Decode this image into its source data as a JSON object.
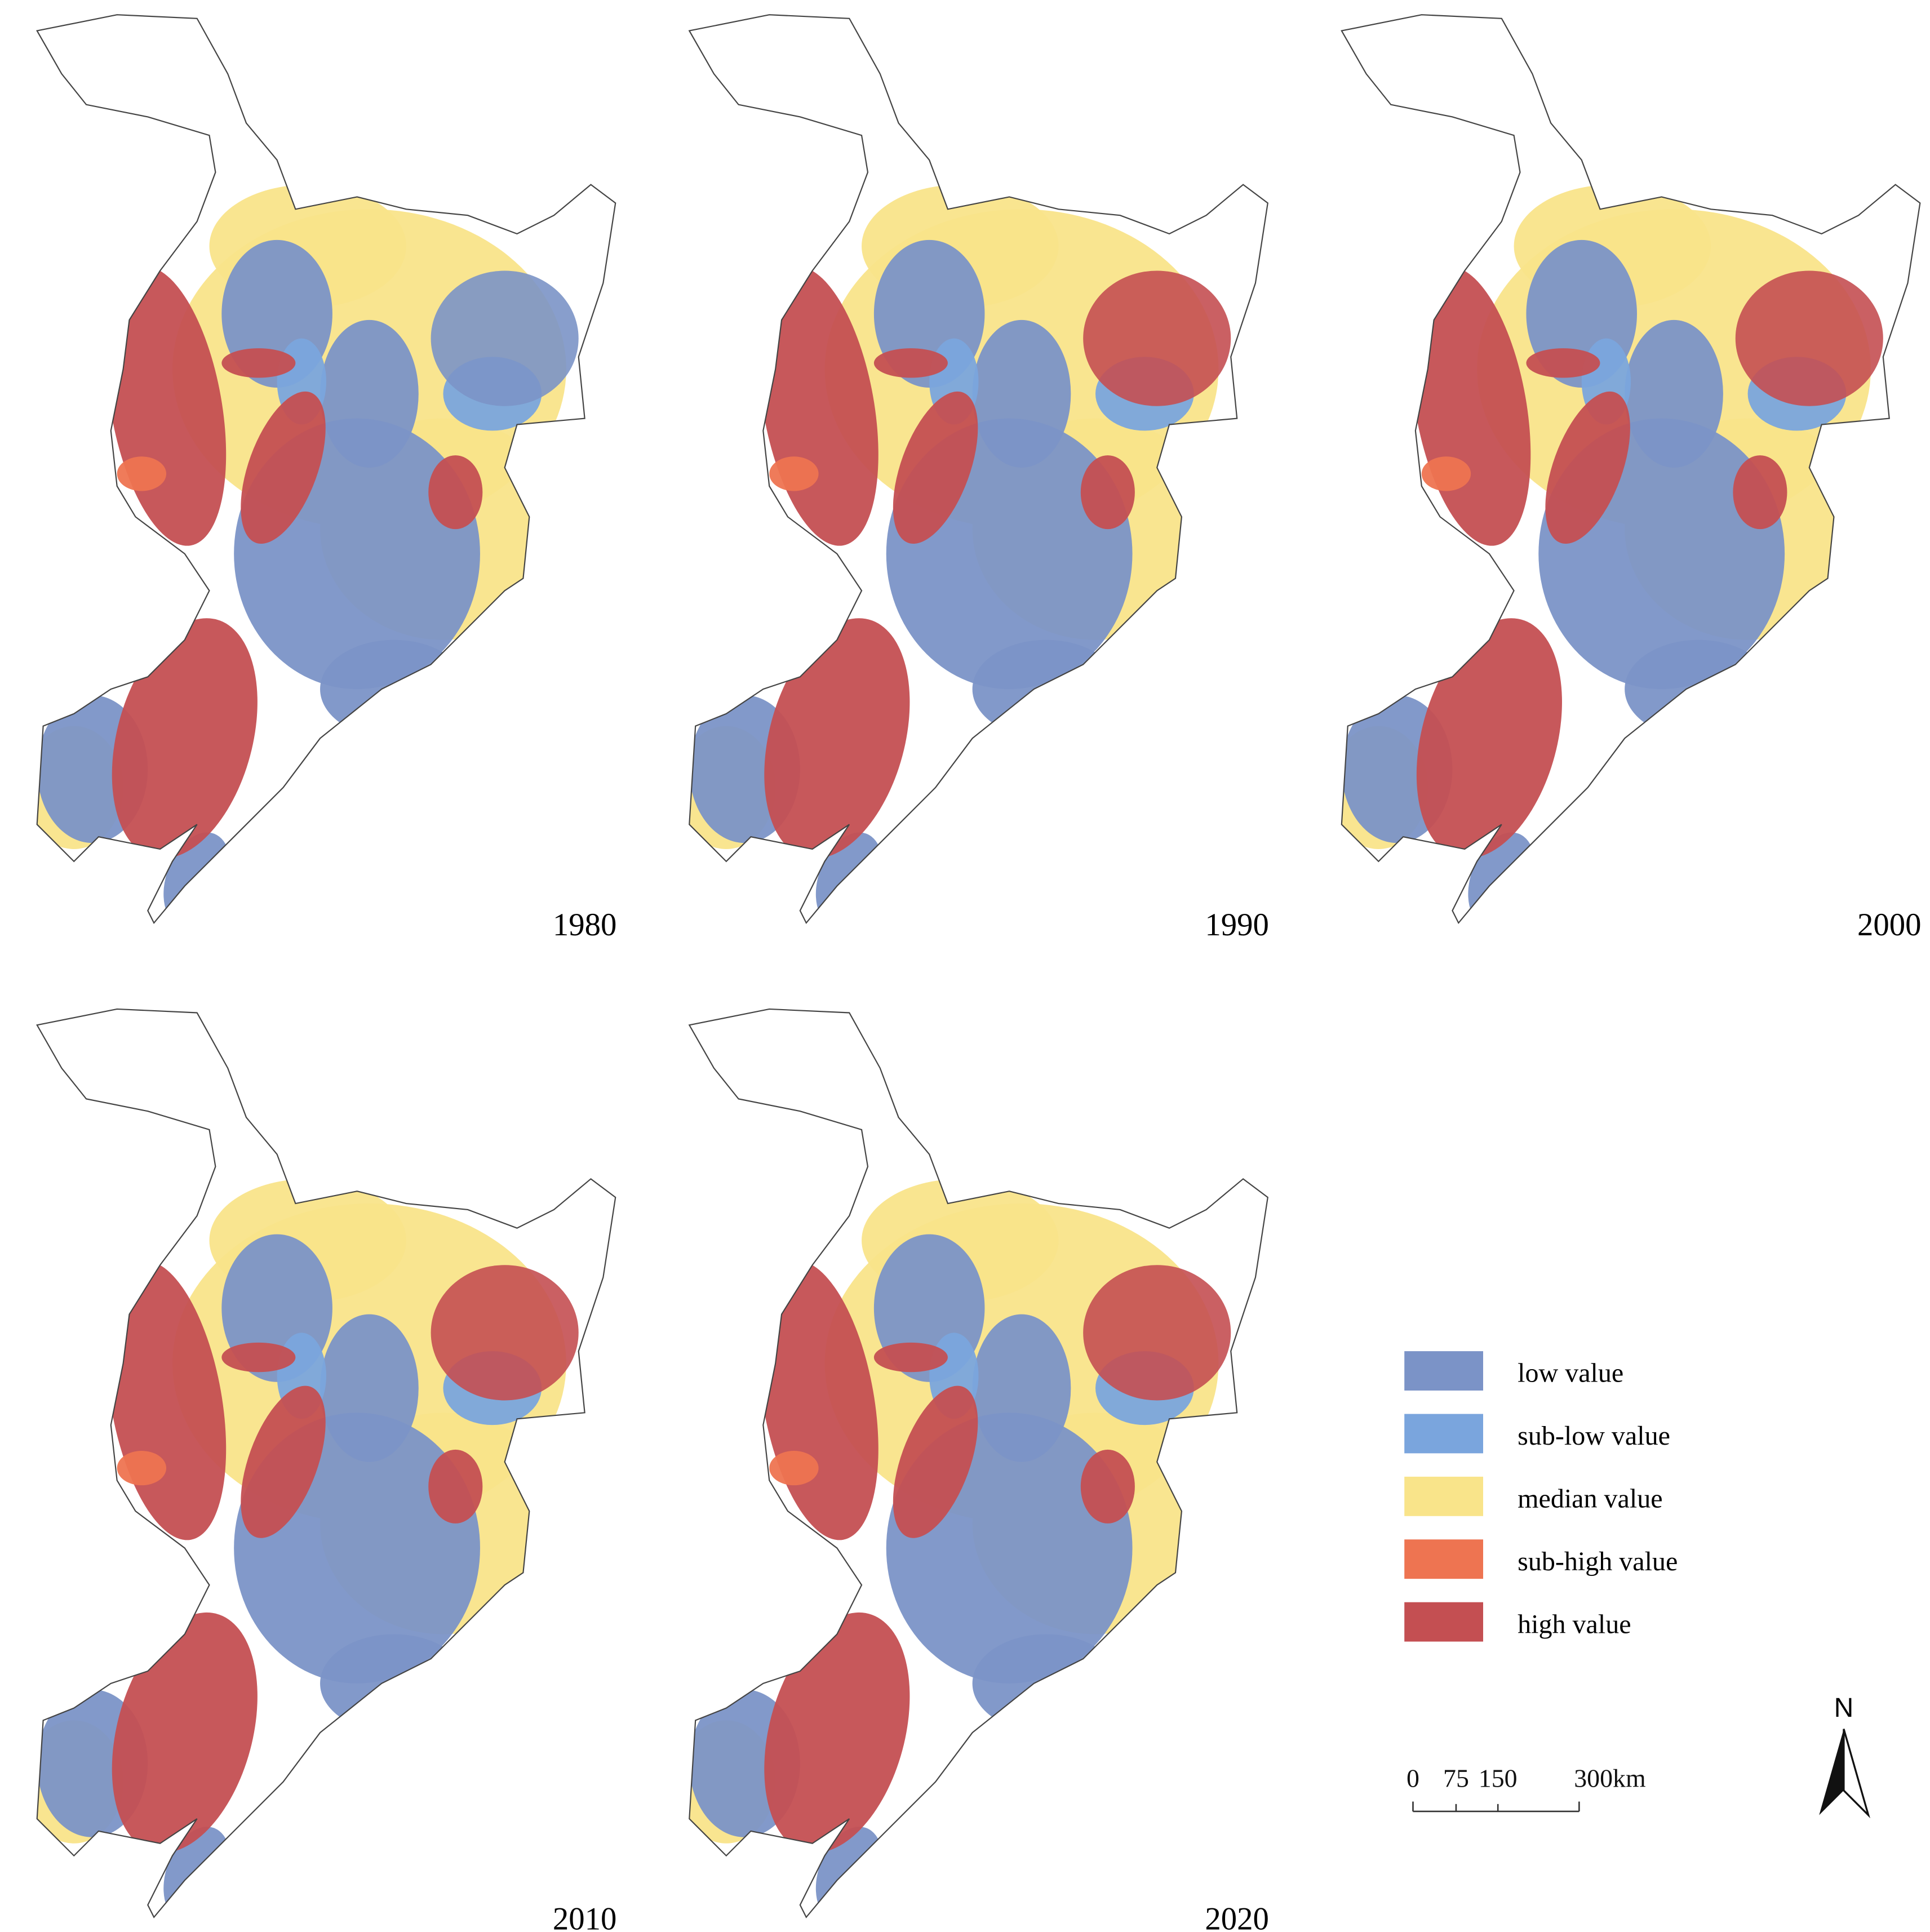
{
  "panels": [
    {
      "year": "1980"
    },
    {
      "year": "1990"
    },
    {
      "year": "2000"
    },
    {
      "year": "2010"
    },
    {
      "year": "2020"
    }
  ],
  "legend": [
    {
      "label": "low value",
      "color": "#7b93c7"
    },
    {
      "label": "sub-low value",
      "color": "#7aa5dd"
    },
    {
      "label": "median value",
      "color": "#f9e48a"
    },
    {
      "label": "sub-high value",
      "color": "#ee7451"
    },
    {
      "label": "high value",
      "color": "#c44f52"
    }
  ],
  "scale_bar": {
    "labels": [
      "0",
      "75",
      "150",
      "300km"
    ]
  },
  "north_arrow": "N"
}
